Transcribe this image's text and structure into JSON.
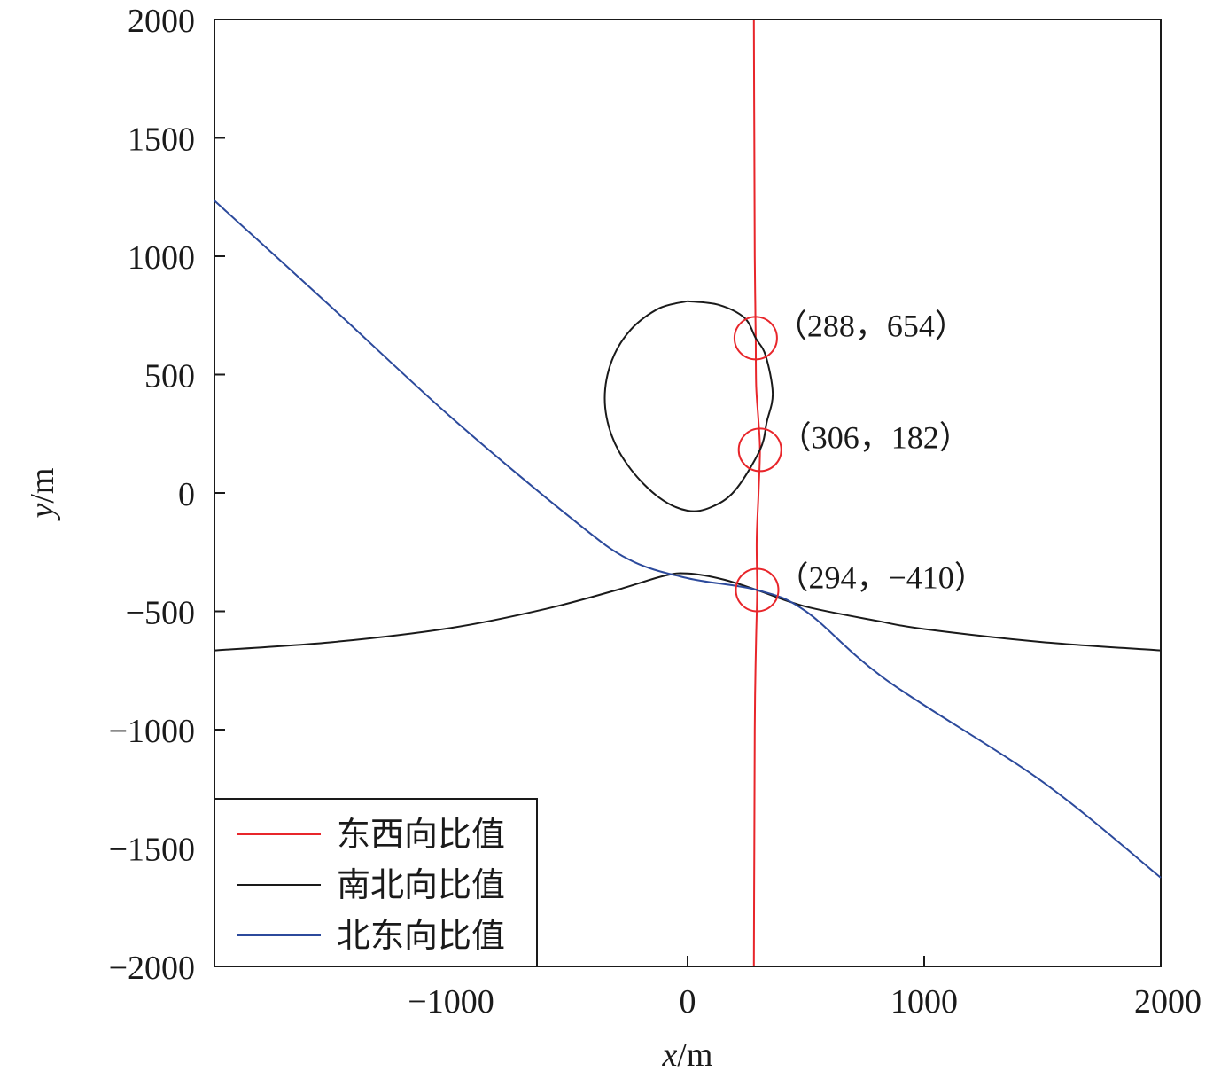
{
  "chart_data": {
    "type": "line",
    "title": "",
    "xlabel": {
      "var": "x",
      "unit": "/m"
    },
    "ylabel": {
      "var": "y",
      "unit": "/m"
    },
    "xlim": [
      -2000,
      2000
    ],
    "ylim": [
      -2000,
      2000
    ],
    "x_ticks": [
      -1000,
      0,
      1000,
      2000
    ],
    "x_tick_labels": [
      "−1000",
      "0",
      "1000",
      "2000"
    ],
    "y_ticks": [
      2000,
      1500,
      1000,
      500,
      0,
      -500,
      -1000,
      -1500,
      -2000
    ],
    "y_tick_labels": [
      "2000",
      "1500",
      "1000",
      "500",
      "0",
      "−500",
      "−1000",
      "−1500",
      "−2000"
    ],
    "grid": false,
    "legend_position": "bottom-left",
    "series": [
      {
        "name": "东西向比值",
        "color": "#e8262b",
        "points": [
          [
            280,
            2000
          ],
          [
            282,
            1500
          ],
          [
            284,
            1000
          ],
          [
            286,
            800
          ],
          [
            288,
            654
          ],
          [
            290,
            450
          ],
          [
            300,
            300
          ],
          [
            306,
            182
          ],
          [
            300,
            0
          ],
          [
            292,
            -200
          ],
          [
            294,
            -410
          ],
          [
            290,
            -600
          ],
          [
            286,
            -800
          ],
          [
            284,
            -1000
          ],
          [
            282,
            -1500
          ],
          [
            280,
            -2000
          ]
        ]
      },
      {
        "name": "南北向比值",
        "color": "#1a1a1a",
        "segments": [
          [
            [
              0,
              810
            ],
            [
              -120,
              780
            ],
            [
              -240,
              690
            ],
            [
              -320,
              560
            ],
            [
              -350,
              400
            ],
            [
              -320,
              240
            ],
            [
              -240,
              100
            ],
            [
              -120,
              -20
            ],
            [
              0,
              -75
            ],
            [
              100,
              -60
            ],
            [
              200,
              10
            ],
            [
              306,
              182
            ],
            [
              335,
              300
            ],
            [
              360,
              420
            ],
            [
              330,
              580
            ],
            [
              288,
              654
            ],
            [
              240,
              740
            ],
            [
              130,
              795
            ],
            [
              0,
              810
            ]
          ],
          [
            [
              -2000,
              -665
            ],
            [
              -1500,
              -630
            ],
            [
              -1000,
              -570
            ],
            [
              -600,
              -490
            ],
            [
              -300,
              -410
            ],
            [
              -100,
              -350
            ],
            [
              0,
              -340
            ],
            [
              150,
              -365
            ],
            [
              294,
              -410
            ],
            [
              500,
              -480
            ],
            [
              800,
              -540
            ],
            [
              1000,
              -575
            ],
            [
              1500,
              -630
            ],
            [
              2000,
              -665
            ]
          ]
        ]
      },
      {
        "name": "北东向比值",
        "color": "#2c4a9c",
        "points": [
          [
            -2000,
            1235
          ],
          [
            -1500,
            780
          ],
          [
            -1000,
            320
          ],
          [
            -500,
            -100
          ],
          [
            -250,
            -280
          ],
          [
            0,
            -360
          ],
          [
            294,
            -410
          ],
          [
            500,
            -500
          ],
          [
            840,
            -790
          ],
          [
            1500,
            -1220
          ],
          [
            2000,
            -1625
          ]
        ]
      }
    ],
    "annotations": [
      {
        "label": "（288，654）",
        "x": 288,
        "y": 654,
        "marker": "circle",
        "color": "#e8262b"
      },
      {
        "label": "（306，182）",
        "x": 306,
        "y": 182,
        "marker": "circle",
        "color": "#e8262b"
      },
      {
        "label": "（294，−410）",
        "x": 294,
        "y": -410,
        "marker": "circle",
        "color": "#e8262b"
      }
    ]
  }
}
